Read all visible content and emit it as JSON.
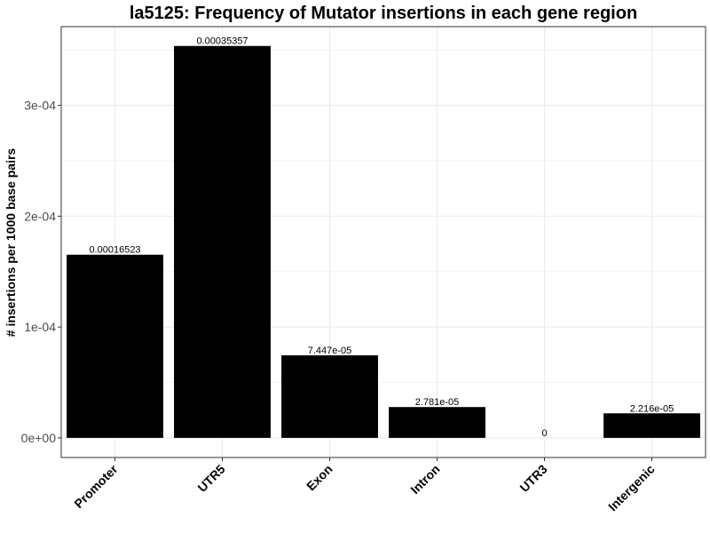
{
  "chart_data": {
    "type": "bar",
    "title": "la5125: Frequency of Mutator insertions in each gene region",
    "xlabel": "",
    "ylabel": "# insertions per 1000 base pairs",
    "categories": [
      "Promoter",
      "UTR5",
      "Exon",
      "Intron",
      "UTR3",
      "Intergenic"
    ],
    "values": [
      0.00016523,
      0.00035357,
      7.447e-05,
      2.781e-05,
      0,
      2.216e-05
    ],
    "value_labels": [
      "0.00016523",
      "0.00035357",
      "7.447e-05",
      "2.781e-05",
      "0",
      "2.216e-05"
    ],
    "yticks": [
      0,
      0.0001,
      0.0002,
      0.0003
    ],
    "ytick_labels": [
      "0e+00",
      "1e-04",
      "2e-04",
      "3e-04"
    ],
    "ylim": [
      -1.77e-05,
      0.000371
    ],
    "grid": true,
    "bar_color": "#000000",
    "grid_color": "#ebebeb",
    "panel_border_color": "#333333"
  }
}
